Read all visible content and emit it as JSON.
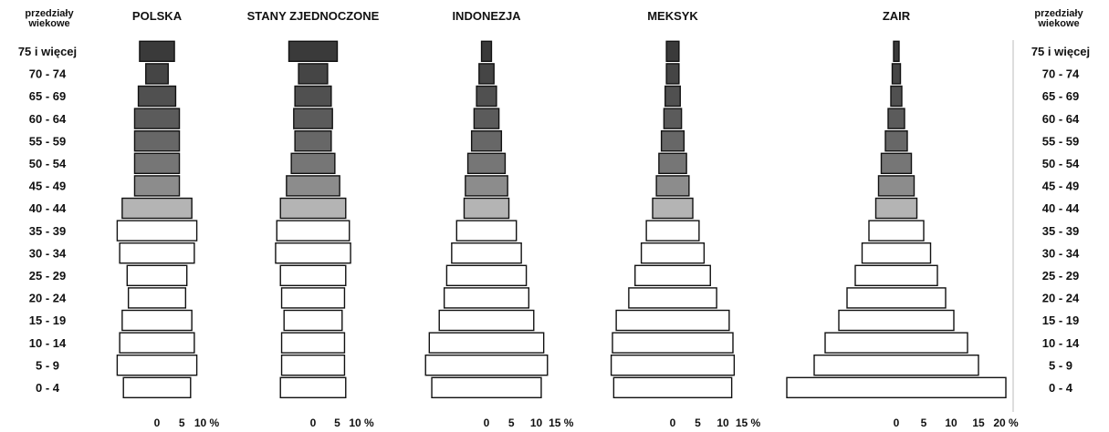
{
  "chart_data": {
    "type": "bar",
    "age_header_left": [
      "przedziały",
      "wiekowe"
    ],
    "age_header_right": [
      "przedziały",
      "wiekowe"
    ],
    "age_groups": [
      "75 i więcej",
      "70 - 74",
      "65 - 69",
      "60 - 64",
      "55 - 59",
      "50 - 54",
      "45 - 49",
      "40 - 44",
      "35 - 39",
      "30 - 34",
      "25 - 29",
      "20 - 24",
      "15 - 19",
      "10 - 14",
      "5 - 9",
      "0 - 4"
    ],
    "age_groups_left": [
      "75 i więcej",
      "70 - 74",
      "65 - 69",
      "60 - 64",
      "55 - 59",
      "50 - 54",
      "45 - 49",
      "40 - 44",
      "35 - 39",
      "30 - 34",
      "25 - 29",
      "20 - 24",
      "15 - 19",
      "10 - 14",
      "5 - 9",
      "0 - 4"
    ],
    "age_groups_right": [
      "75 i więcej",
      "70 - 74",
      "65 - 69",
      "60 - 64",
      "55 - 59",
      "50 - 54",
      "45 - 49",
      "40 - 44",
      "35 - 39",
      "30 - 34",
      "25 - 29",
      "20 - 24",
      "15 - 19",
      "10 - 14",
      "5 - 9",
      "0 - 4"
    ],
    "unit": "%",
    "series": [
      {
        "name": "POLSKA",
        "ticks": [
          "0",
          "5",
          "10 %"
        ],
        "xmax": 10,
        "values": [
          7.0,
          4.5,
          7.5,
          9.0,
          9.0,
          9.0,
          9.0,
          14.0,
          16.0,
          15.0,
          12.0,
          11.5,
          14.0,
          15.0,
          16.0,
          13.5
        ]
      },
      {
        "name": "STANY ZJEDNOCZONE",
        "ticks": [
          "0",
          "5",
          "10 %"
        ],
        "xmax": 10,
        "values": [
          10.0,
          6.0,
          7.5,
          8.0,
          7.5,
          9.0,
          11.0,
          13.5,
          15.0,
          15.5,
          13.5,
          13.0,
          12.0,
          13.0,
          13.0,
          13.5
        ]
      },
      {
        "name": "INDONEZJA",
        "ticks": [
          "0",
          "5",
          "10",
          "15 %"
        ],
        "xmax": 15,
        "values": [
          2.0,
          3.0,
          4.0,
          5.0,
          6.0,
          7.5,
          8.5,
          9.0,
          12.0,
          14.0,
          16.0,
          17.0,
          19.0,
          23.0,
          24.5,
          22.0
        ]
      },
      {
        "name": "MEKSYK",
        "ticks": [
          "0",
          "5",
          "10",
          "15 %"
        ],
        "xmax": 15,
        "values": [
          2.5,
          2.5,
          3.0,
          3.5,
          4.5,
          5.5,
          6.5,
          8.0,
          10.5,
          12.5,
          15.0,
          17.5,
          22.5,
          24.0,
          24.5,
          23.5
        ]
      },
      {
        "name": "ZAIR",
        "ticks": [
          "0",
          "5",
          "10",
          "15",
          "20 %"
        ],
        "xmax": 20,
        "values": [
          1.0,
          1.5,
          2.0,
          3.0,
          4.0,
          5.5,
          6.5,
          7.5,
          10.0,
          12.5,
          15.0,
          18.0,
          21.0,
          26.0,
          30.0,
          40.0
        ]
      }
    ]
  }
}
